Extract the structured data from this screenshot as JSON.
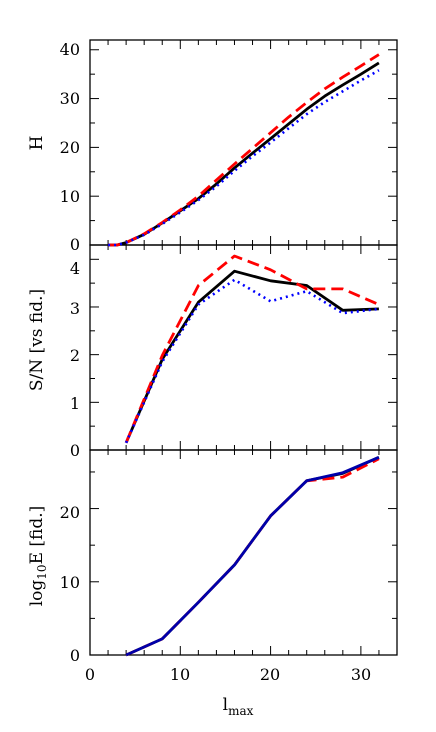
{
  "chart_data": [
    {
      "type": "line",
      "ylabel": "H",
      "xlim": [
        0,
        34
      ],
      "ylim": [
        0,
        42
      ],
      "yticks": [
        0,
        10,
        20,
        30,
        40
      ],
      "yminor": 5,
      "series": [
        {
          "style": "solid",
          "color": "#000000",
          "x": [
            2,
            3,
            4,
            6,
            8,
            10,
            12,
            14,
            16,
            18,
            20,
            22,
            24,
            26,
            28,
            30,
            32
          ],
          "y": [
            0,
            0,
            0.5,
            2.2,
            4.5,
            7.0,
            9.5,
            12.5,
            15.8,
            18.8,
            21.8,
            24.8,
            27.8,
            30.5,
            32.8,
            35.0,
            37.3
          ]
        },
        {
          "style": "dashed",
          "color": "#ff0000",
          "x": [
            2,
            3,
            4,
            6,
            8,
            10,
            12,
            14,
            16,
            18,
            20,
            22,
            24,
            26,
            28,
            30,
            32
          ],
          "y": [
            0,
            0,
            0.5,
            2.3,
            4.6,
            7.2,
            10.0,
            13.3,
            16.6,
            19.8,
            23.0,
            26.2,
            29.2,
            32.0,
            34.4,
            36.7,
            39.0
          ]
        },
        {
          "style": "dotted",
          "color": "#0000ff",
          "x": [
            2,
            3,
            4,
            6,
            8,
            10,
            12,
            14,
            16,
            18,
            20,
            22,
            24,
            26,
            28,
            30,
            32
          ],
          "y": [
            0,
            0,
            0.5,
            2.1,
            4.3,
            6.7,
            9.2,
            12.0,
            15.2,
            18.2,
            21.0,
            23.9,
            26.8,
            29.3,
            31.5,
            33.7,
            35.8
          ]
        }
      ]
    },
    {
      "type": "line",
      "ylabel": "S/N [vs fid.]",
      "xlim": [
        0,
        34
      ],
      "ylim": [
        0,
        4.3
      ],
      "yticks": [
        0,
        1,
        2,
        3,
        4
      ],
      "yminor": 0.5,
      "series": [
        {
          "style": "solid",
          "color": "#000000",
          "x": [
            4,
            8,
            12,
            16,
            20,
            24,
            28,
            32
          ],
          "y": [
            0.15,
            1.9,
            3.1,
            3.75,
            3.55,
            3.45,
            2.93,
            2.96
          ]
        },
        {
          "style": "dashed",
          "color": "#ff0000",
          "x": [
            4,
            8,
            12,
            16,
            20,
            24,
            28,
            32
          ],
          "y": [
            0.15,
            1.98,
            3.45,
            4.07,
            3.78,
            3.38,
            3.38,
            3.05
          ]
        },
        {
          "style": "dotted",
          "color": "#0000ff",
          "x": [
            4,
            8,
            12,
            16,
            20,
            24,
            28,
            32
          ],
          "y": [
            0.15,
            1.85,
            3.05,
            3.57,
            3.12,
            3.33,
            2.87,
            2.96
          ]
        }
      ]
    },
    {
      "type": "line",
      "ylabel": "log10E [fid.]",
      "xlabel": "lmax",
      "xlim": [
        0,
        34
      ],
      "ylim": [
        0,
        28
      ],
      "yticks": [
        0,
        10,
        20
      ],
      "yminor": 5,
      "xticks": [
        0,
        10,
        20,
        30
      ],
      "xminor": 2,
      "series": [
        {
          "style": "solid",
          "color": "#000000",
          "x": [
            4,
            8,
            12,
            16,
            20,
            24,
            28,
            32
          ],
          "y": [
            0,
            2.2,
            7.2,
            12.3,
            19.0,
            23.8,
            24.8,
            27.0
          ]
        },
        {
          "style": "dashed",
          "color": "#ff0000",
          "x": [
            4,
            8,
            12,
            16,
            20,
            24,
            28,
            32
          ],
          "y": [
            0,
            2.2,
            7.2,
            12.3,
            19.0,
            23.8,
            24.3,
            26.8
          ]
        },
        {
          "style": "solid",
          "color": "#0000aa",
          "x": [
            4,
            8,
            12,
            16,
            20,
            24,
            28,
            32
          ],
          "y": [
            0,
            2.2,
            7.2,
            12.3,
            19.0,
            23.8,
            24.9,
            27.0
          ]
        }
      ]
    }
  ],
  "labels": {
    "ylabel_top": "H",
    "ylabel_mid": "S/N [vs fid.]",
    "ylabel_bot_base": "log",
    "ylabel_bot_sub": "10",
    "ylabel_bot_rest": "E [fid.]",
    "xlabel_base": "l",
    "xlabel_sub": "max",
    "top_ticks": [
      "0",
      "10",
      "20",
      "30",
      "40"
    ],
    "mid_ticks": [
      "0",
      "1",
      "2",
      "3",
      "4"
    ],
    "bot_ticks": [
      "0",
      "10",
      "20"
    ],
    "x_ticks": [
      "0",
      "10",
      "20",
      "30"
    ]
  }
}
